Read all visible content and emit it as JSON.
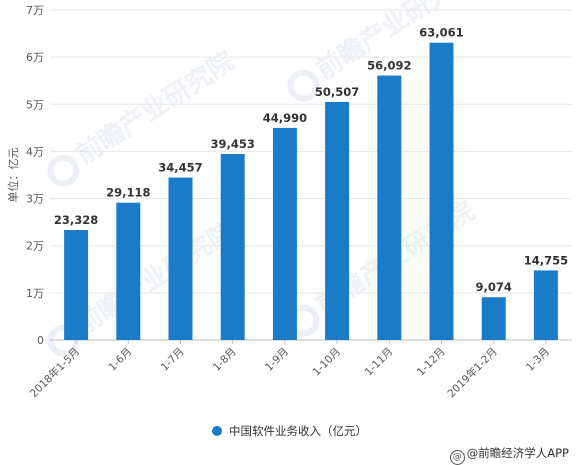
{
  "chart_data": {
    "type": "bar",
    "ylabel": "单位：亿元",
    "ylim": [
      0,
      70000
    ],
    "yticks": [
      0,
      10000,
      20000,
      30000,
      40000,
      50000,
      60000,
      70000
    ],
    "ytick_labels": [
      "0",
      "1万",
      "2万",
      "3万",
      "4万",
      "5万",
      "6万",
      "7万"
    ],
    "categories": [
      "2018年1-5月",
      "1-6月",
      "1-7月",
      "1-8月",
      "1-9月",
      "1-10月",
      "1-11月",
      "1-12月",
      "2019年1-2月",
      "1-3月"
    ],
    "series": [
      {
        "name": "中国软件业务收入（亿元）",
        "values": [
          23328,
          29118,
          34457,
          39453,
          44990,
          50507,
          56092,
          63061,
          9074,
          14755
        ],
        "labels": [
          "23,328",
          "29,118",
          "34,457",
          "39,453",
          "44,990",
          "50,507",
          "56,092",
          "63,061",
          "9,074",
          "14,755"
        ],
        "color": "#1a7cc9"
      }
    ],
    "grid": true,
    "legend_position": "bottom"
  },
  "credit": {
    "icon": "weibo-at-icon",
    "text": "@前瞻经济学人APP"
  },
  "watermark": "前瞻产业研究院"
}
